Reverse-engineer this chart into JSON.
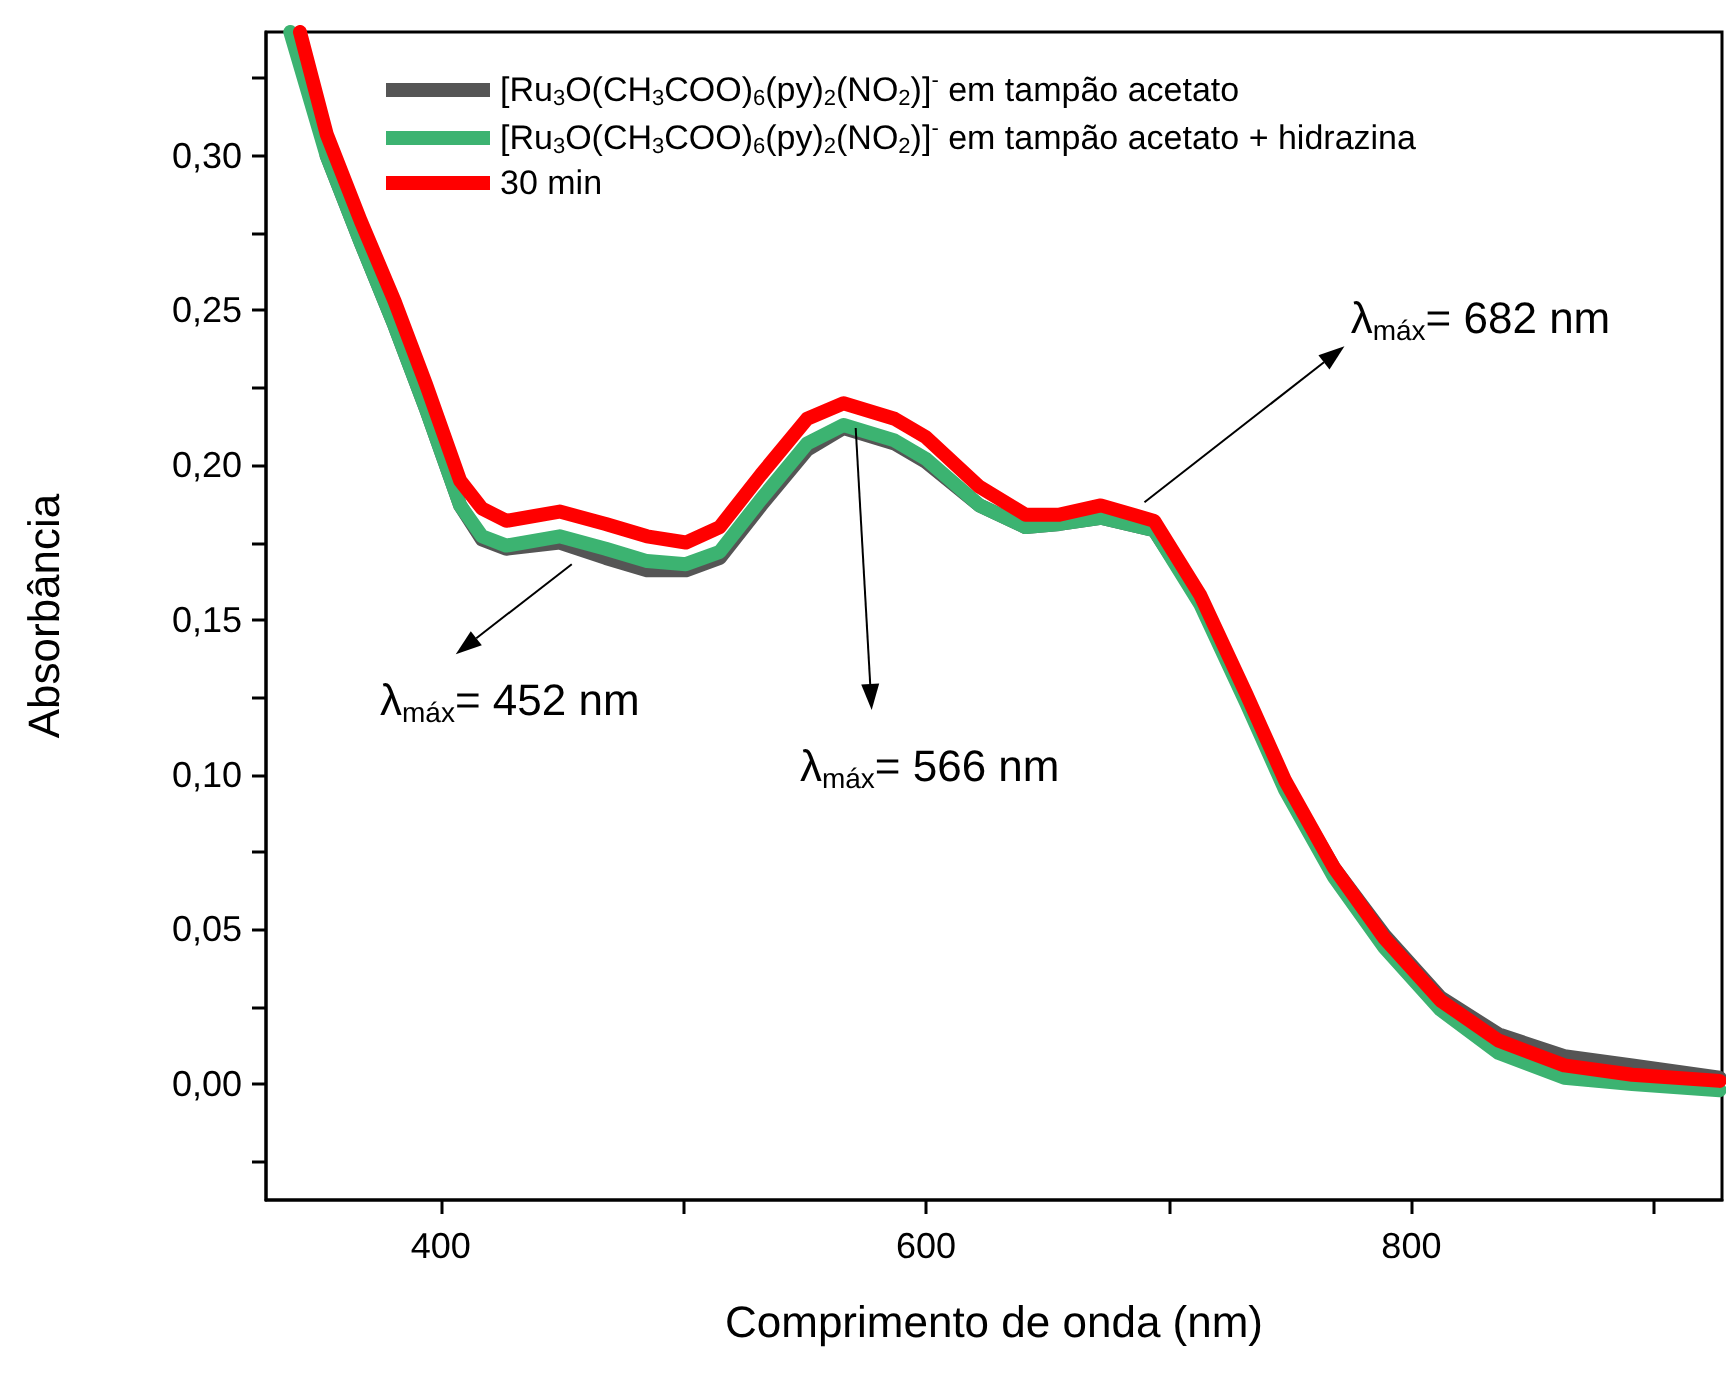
{
  "chart_data": {
    "type": "line",
    "xlabel": "Comprimento de onda (nm)",
    "ylabel": "Absorbância",
    "xlim": [
      328,
      928
    ],
    "ylim": [
      -0.0375,
      0.34
    ],
    "xticks": [
      400,
      {
        "value": 500,
        "label": null
      },
      600,
      {
        "value": 700,
        "label": null
      },
      800,
      {
        "value": 900,
        "label": null
      }
    ],
    "yticks": [
      {
        "value": -0.025,
        "label": null
      },
      {
        "value": 0,
        "label": "0,00"
      },
      {
        "value": 0.025,
        "label": null
      },
      {
        "value": 0.05,
        "label": "0,05"
      },
      {
        "value": 0.075,
        "label": null
      },
      {
        "value": 0.1,
        "label": "0,10"
      },
      {
        "value": 0.125,
        "label": null
      },
      {
        "value": 0.15,
        "label": "0,15"
      },
      {
        "value": 0.175,
        "label": null
      },
      {
        "value": 0.2,
        "label": "0,20"
      },
      {
        "value": 0.225,
        "label": null
      },
      {
        "value": 0.25,
        "label": "0,25"
      },
      {
        "value": 0.275,
        "label": null
      },
      {
        "value": 0.3,
        "label": "0,30"
      },
      {
        "value": 0.325,
        "label": null
      }
    ],
    "grid": false,
    "legend": "top left",
    "marker": "none",
    "line_style": "solid",
    "series": [
      {
        "name": "[Ru$_{3}$O(CH$_{3}$COO)$_{6}$(py)$_{2}$(NO$_{2}$)]$^{-}$ em tampão acetato",
        "color": "#555555",
        "x": [
          353,
          367,
          381,
          394,
          408,
          417,
          427,
          449,
          468,
          485,
          501,
          515,
          532,
          551,
          566,
          587,
          600,
          622,
          641,
          655,
          672,
          694,
          713,
          732,
          748,
          768,
          789,
          812,
          836,
          863,
          891,
          927
        ],
        "values": [
          0.3,
          0.272,
          0.245,
          0.218,
          0.187,
          0.176,
          0.173,
          0.175,
          0.17,
          0.166,
          0.166,
          0.17,
          0.187,
          0.205,
          0.212,
          0.207,
          0.201,
          0.187,
          0.18,
          0.181,
          0.183,
          0.179,
          0.156,
          0.124,
          0.097,
          0.07,
          0.048,
          0.028,
          0.016,
          0.009,
          0.006,
          0.002
        ]
      },
      {
        "name": "[Ru$_{3}$O(CH$_{3}$COO)$_{6}$(py)$_{2}$(NO$_{2}$)]$^{-}$ em tampão acetato + hidrazina",
        "color": "#3cb371",
        "x": [
          338,
          353,
          367,
          381,
          394,
          408,
          417,
          427,
          449,
          468,
          485,
          501,
          515,
          532,
          551,
          566,
          587,
          600,
          622,
          641,
          655,
          672,
          694,
          713,
          732,
          748,
          768,
          789,
          812,
          836,
          863,
          891,
          927
        ],
        "values": [
          0.34,
          0.3,
          0.272,
          0.245,
          0.218,
          0.187,
          0.177,
          0.174,
          0.177,
          0.173,
          0.169,
          0.168,
          0.172,
          0.189,
          0.207,
          0.213,
          0.208,
          0.202,
          0.187,
          0.18,
          0.181,
          0.183,
          0.179,
          0.155,
          0.123,
          0.095,
          0.067,
          0.044,
          0.024,
          0.01,
          0.002,
          0.0,
          -0.002
        ]
      },
      {
        "name": "30 min",
        "color": "#ff0000",
        "x": [
          342,
          353,
          367,
          381,
          394,
          408,
          417,
          427,
          449,
          468,
          485,
          501,
          515,
          532,
          551,
          566,
          587,
          600,
          622,
          641,
          655,
          672,
          694,
          713,
          732,
          748,
          768,
          789,
          812,
          836,
          863,
          891,
          927
        ],
        "values": [
          0.34,
          0.307,
          0.279,
          0.253,
          0.226,
          0.195,
          0.186,
          0.182,
          0.185,
          0.181,
          0.177,
          0.175,
          0.18,
          0.197,
          0.215,
          0.22,
          0.215,
          0.209,
          0.193,
          0.184,
          0.184,
          0.187,
          0.182,
          0.158,
          0.126,
          0.098,
          0.07,
          0.047,
          0.027,
          0.014,
          0.006,
          0.003,
          0.001
        ]
      }
    ],
    "annotations": [
      {
        "text": "λ$_{máx}$= 452 nm",
        "x": 454,
        "y": 0.168
      },
      {
        "text": "λ$_{máx}$= 566 nm",
        "x": 571,
        "y": 0.212
      },
      {
        "text": "λ$_{máx}$= 682 nm",
        "x": 690,
        "y": 0.188
      }
    ]
  }
}
